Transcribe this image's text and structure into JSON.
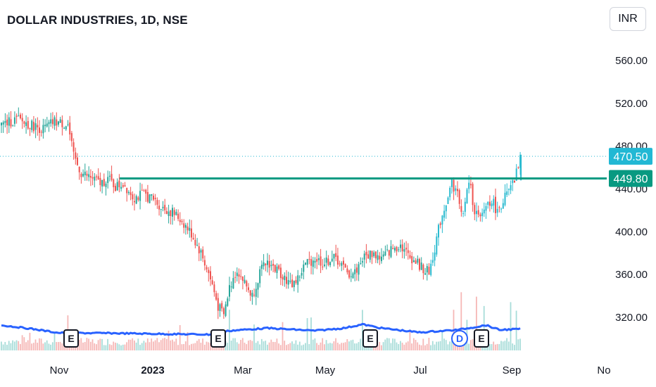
{
  "header": {
    "title": "DOLLAR INDUSTRIES, 1D, NSE",
    "currency_button": "INR"
  },
  "chart_data": {
    "type": "candlestick",
    "symbol": "DOLLAR INDUSTRIES",
    "interval": "1D",
    "exchange": "NSE",
    "currency": "INR",
    "ylim": [
      290,
      590
    ],
    "y_ticks": [
      "560.00",
      "520.00",
      "480.00",
      "440.00",
      "400.00",
      "360.00",
      "320.00"
    ],
    "x_ticks": [
      {
        "label": "Nov",
        "bold": false
      },
      {
        "label": "2023",
        "bold": true
      },
      {
        "label": "Mar",
        "bold": false
      },
      {
        "label": "May",
        "bold": false
      },
      {
        "label": "Jul",
        "bold": false
      },
      {
        "label": "Sep",
        "bold": false
      },
      {
        "label": "No",
        "bold": false
      }
    ],
    "last_price": "470.50",
    "horizontal_level": "449.80",
    "events": [
      {
        "type": "E",
        "date": "Nov"
      },
      {
        "type": "E",
        "date": "Feb"
      },
      {
        "type": "E",
        "date": "May"
      },
      {
        "type": "D",
        "date": "Aug"
      },
      {
        "type": "E",
        "date": "Aug"
      }
    ],
    "price_path": [
      [
        0,
        500
      ],
      [
        8,
        505
      ],
      [
        15,
        500
      ],
      [
        22,
        496
      ],
      [
        28,
        503
      ],
      [
        35,
        500
      ],
      [
        38,
        470
      ],
      [
        42,
        455
      ],
      [
        48,
        450
      ],
      [
        52,
        445
      ],
      [
        56,
        450
      ],
      [
        60,
        442
      ],
      [
        64,
        445
      ],
      [
        70,
        432
      ],
      [
        75,
        435
      ],
      [
        80,
        430
      ],
      [
        85,
        422
      ],
      [
        90,
        418
      ],
      [
        95,
        410
      ],
      [
        100,
        398
      ],
      [
        105,
        380
      ],
      [
        108,
        366
      ],
      [
        111,
        350
      ],
      [
        114,
        330
      ],
      [
        117,
        322
      ],
      [
        120,
        348
      ],
      [
        124,
        365
      ],
      [
        128,
        352
      ],
      [
        132,
        340
      ],
      [
        136,
        362
      ],
      [
        140,
        372
      ],
      [
        144,
        365
      ],
      [
        148,
        360
      ],
      [
        152,
        350
      ],
      [
        156,
        356
      ],
      [
        160,
        370
      ],
      [
        165,
        375
      ],
      [
        170,
        370
      ],
      [
        174,
        376
      ],
      [
        178,
        372
      ],
      [
        182,
        360
      ],
      [
        186,
        362
      ],
      [
        190,
        375
      ],
      [
        195,
        380
      ],
      [
        200,
        375
      ],
      [
        205,
        383
      ],
      [
        210,
        388
      ],
      [
        214,
        378
      ],
      [
        218,
        372
      ],
      [
        222,
        365
      ],
      [
        225,
        362
      ],
      [
        228,
        385
      ],
      [
        231,
        410
      ],
      [
        234,
        428
      ],
      [
        237,
        446
      ],
      [
        240,
        435
      ],
      [
        243,
        415
      ],
      [
        246,
        448
      ],
      [
        249,
        420
      ],
      [
        252,
        410
      ],
      [
        255,
        425
      ],
      [
        258,
        430
      ],
      [
        261,
        418
      ],
      [
        264,
        430
      ],
      [
        267,
        437
      ],
      [
        270,
        447
      ],
      [
        273,
        470.5
      ]
    ],
    "volume_ma_path": [
      [
        0,
        0.93
      ],
      [
        15,
        0.85
      ],
      [
        30,
        0.75
      ],
      [
        60,
        0.74
      ],
      [
        90,
        0.72
      ],
      [
        110,
        0.71
      ],
      [
        120,
        0.8
      ],
      [
        140,
        0.86
      ],
      [
        165,
        0.8
      ],
      [
        180,
        0.86
      ],
      [
        190,
        0.95
      ],
      [
        200,
        0.86
      ],
      [
        220,
        0.76
      ],
      [
        240,
        0.82
      ],
      [
        255,
        0.93
      ],
      [
        262,
        0.82
      ],
      [
        273,
        0.84
      ]
    ]
  },
  "colors": {
    "up": "#26a69a",
    "down": "#ef5350",
    "up_light": "#2bbbd0",
    "volume_ma": "#2962ff",
    "level_line": "#089981",
    "last_price": "#22b8d4"
  }
}
